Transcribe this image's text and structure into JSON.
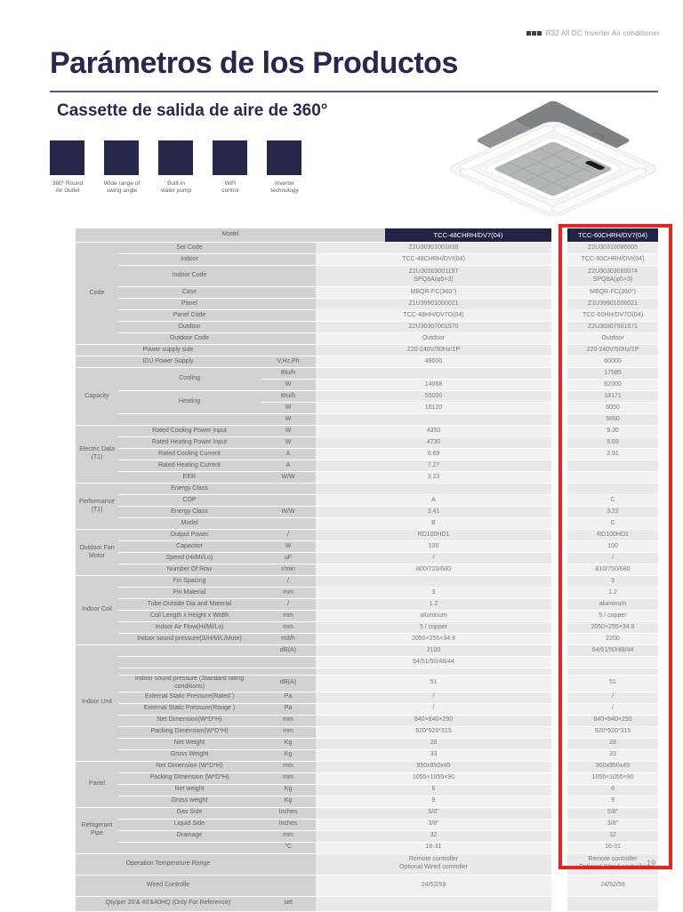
{
  "header": {
    "brand_tag": "R32 All DC Inverter Air conditioner"
  },
  "title": "Parámetros de los Productos",
  "subtitle": "Cassette de salida de aire de 360°",
  "features": [
    "360° Round\nAir Outlet",
    "Wide range of\nswing angle",
    "Built-in\nwater pump",
    "WiFi\ncontrol",
    "Inverter\ntechnology"
  ],
  "page_number": "19",
  "colors": {
    "navy": "#232345",
    "red": "#e8221c",
    "label_gray": "#d2d2d4",
    "title_navy": "#28284f"
  },
  "table": {
    "model_row": {
      "label": "Model",
      "col48": "TCC-48CHRH/DV7(04)",
      "col60": "TCC-60CHRH/DV7(04)"
    },
    "rows": [
      {
        "label": "Set Code",
        "v48": "Z2U30301001838",
        "v60": "Z2U30310080005",
        "group": "Code",
        "group_span": 8
      },
      {
        "label": "Indoor",
        "v48": "TCC-48CHRH/DVI(04)",
        "v60": "TCC-60CHRH/DVI(04)"
      },
      {
        "label": "Indoor Code",
        "v48": "Z2U30303001197\nSPQ8A(φ5×3)",
        "v60": "Z2U30303080074\nSPQ8A(φ5×3)",
        "h": "tall"
      },
      {
        "label": "Case",
        "v48": "MBQR-FC(360°)",
        "v60": "MBQR-FC(360°)"
      },
      {
        "label": "Panel",
        "v48": "Z1U39901000021",
        "v60": "Z1U39901000021"
      },
      {
        "label": "Panel Code",
        "v48": "TCC-48HH/DV7O(04)",
        "v60": "TCC-60HH/DV7O(04)"
      },
      {
        "label": "Outdoor",
        "v48": "Z2U30307001570",
        "v60": "Z2U30307001571"
      },
      {
        "label": "Outdoor Code",
        "v48": "Outdoor",
        "v60": "Outdoor"
      },
      {
        "label": "Power supply side",
        "full": true,
        "v48": "220-240V/50Hz/1P",
        "v60": "220-240V/50Hz/1P"
      },
      {
        "label": "IDU Power Supply",
        "full": true,
        "unit": "V,Hz,Ph",
        "v48": "48000",
        "v60": "60000"
      },
      {
        "label": "Cooling",
        "label_span": 2,
        "unit": "Btu/h",
        "v48": "",
        "v60": "17585",
        "group": "Capacity",
        "group_span": 5
      },
      {
        "skip_label": true,
        "unit": "W",
        "v48": "14068",
        "v60": "62000"
      },
      {
        "label": "Heating",
        "label_span": 2,
        "unit": "Btu/h",
        "v48": "55000",
        "v60": "18171"
      },
      {
        "skip_label": true,
        "unit": "W",
        "v48": "16120",
        "v60": "6050"
      },
      {
        "label": "",
        "unit": "W",
        "v48": "",
        "v60": "5650"
      },
      {
        "label": "Rated Cooling Power Input",
        "unit": "W",
        "v48": "4350",
        "v60": "9.30",
        "group": "Electric Data (T1)",
        "group_span": 5
      },
      {
        "label": "Rated Heating Power Input",
        "unit": "W",
        "v48": "4730",
        "v60": "8.69"
      },
      {
        "label": "Rated Cooling Current",
        "unit": "A",
        "v48": "6.69",
        "v60": "2.91"
      },
      {
        "label": "Rated Heating Current",
        "unit": "A",
        "v48": "7.27",
        "v60": ""
      },
      {
        "label": "EER",
        "unit": "W/W",
        "v48": "3.23",
        "v60": ""
      },
      {
        "label": "Energy Class",
        "v48": "",
        "v60": "",
        "group": "Performance (T1)",
        "group_span": 4
      },
      {
        "label": "COP",
        "v48": "A",
        "v60": "C"
      },
      {
        "label": "Energy Class",
        "unit": "W/W",
        "v48": "3.41",
        "v60": "3.22"
      },
      {
        "label": "Model",
        "v48": "B",
        "v60": "C"
      },
      {
        "label": "Output Power",
        "unit": "/",
        "v48": "RD100HD1",
        "v60": "RD100HD1",
        "group": "Outdoor Fan Motor",
        "group_span": 4
      },
      {
        "label": "Capacitor",
        "unit": "W",
        "v48": "100",
        "v60": "100"
      },
      {
        "label": "Speed (Hi/Mi/Lo)",
        "unit": "uF",
        "v48": "/",
        "v60": "/"
      },
      {
        "label": "Number Of Row",
        "unit": "r/min",
        "v48": "800/720/680",
        "v60": "810/750/680"
      },
      {
        "label": "Fin Spacing",
        "unit": "/",
        "v48": "",
        "v60": "3",
        "group": "Indoor Coil",
        "group_span": 6
      },
      {
        "label": "Fin Material",
        "unit": "mm",
        "v48": "3",
        "v60": "1.2"
      },
      {
        "label": "Tube Outside Dia.and Material",
        "unit": "/",
        "v48": "1.2",
        "v60": "aluminum"
      },
      {
        "label": "Coil Length x Height x Width",
        "unit": "mm",
        "v48": "aluminum",
        "v60": "5 / copper"
      },
      {
        "label": "Indoor Air Flow(Hi/Mi/Lo)",
        "unit": "mm",
        "v48": "5 / copper",
        "v60": "2050×255×34.8"
      },
      {
        "label": "Indoor sound pressure(S/H/M/L/Mute)",
        "unit": "m3/h",
        "v48": "2050×255×34.8",
        "v60": "2200"
      },
      {
        "label": "",
        "unit": "dB(A)",
        "v48": "2100",
        "v60": "54/51/50/48/44",
        "group": "Indoor Unit",
        "group_span": 10
      },
      {
        "label": "",
        "v48": "54/51/50/48/44",
        "v60": ""
      },
      {
        "label": "",
        "v48": "",
        "v60": "",
        "h": "spacer"
      },
      {
        "label": "Indoor sound pressure (Standard rating conditions)",
        "unit": "dB(A)",
        "v48": "51",
        "v60": "51",
        "h": "tall2"
      },
      {
        "label": "External Static Pressure(Rated )",
        "unit": "Pa",
        "v48": "/",
        "v60": "/"
      },
      {
        "label": "External Static Pressure(Range )",
        "unit": "Pa",
        "v48": "/",
        "v60": "/"
      },
      {
        "label": "Net Dimension(W*D*H)",
        "unit": "mm",
        "v48": "840×840×290",
        "v60": "840×840×290"
      },
      {
        "label": "Packing Dimension(W*D*H)",
        "unit": "mm",
        "v48": "920*920*315",
        "v60": "920*920*315"
      },
      {
        "label": "Net Weight",
        "unit": "Kg",
        "v48": "28",
        "v60": "28"
      },
      {
        "label": "Gross Weight",
        "unit": "Kg",
        "v48": "33",
        "v60": "33"
      },
      {
        "label": "Net Dimension (W*D*H)",
        "unit": "mm",
        "v48": "950x950x45",
        "v60": "950x950x45",
        "group": "Panel",
        "group_span": 4
      },
      {
        "label": "Packing Dimension (W*D*H)",
        "unit": "mm",
        "v48": "1055×1055×90",
        "v60": "1055×1055×90"
      },
      {
        "label": "Net weight",
        "unit": "Kg",
        "v48": "6",
        "v60": "6"
      },
      {
        "label": "Gross weight",
        "unit": "Kg",
        "v48": "9",
        "v60": "9"
      },
      {
        "label": "Gas Side",
        "unit": "Inches",
        "v48": "5/8\"",
        "v60": "5/8\"",
        "group": "Refrigerant Pipe",
        "group_span": 4
      },
      {
        "label": "Liquid Side",
        "unit": "Inches",
        "v48": "3/8\"",
        "v60": "3/8\""
      },
      {
        "label": "Drainage",
        "unit": "mm",
        "v48": "32",
        "v60": "32"
      },
      {
        "label": "",
        "unit": "°C",
        "v48": "16-31",
        "v60": "16-31"
      },
      {
        "label": "Operation Temperature Range",
        "full": true,
        "v48": "Remote controller\nOptional Wired controller",
        "v60": "Remote controller\nOptional Wired controller",
        "h": "tall"
      },
      {
        "label": "Wired Controlle",
        "full": true,
        "v48": "24/52/59",
        "v60": "24/52/59",
        "h": "tall"
      },
      {
        "label": "Qty/per 20'& 40'&40HQ (Only For Reference)",
        "full": true,
        "unit": "set",
        "v48": "",
        "v60": "",
        "h": "tall2"
      }
    ]
  }
}
